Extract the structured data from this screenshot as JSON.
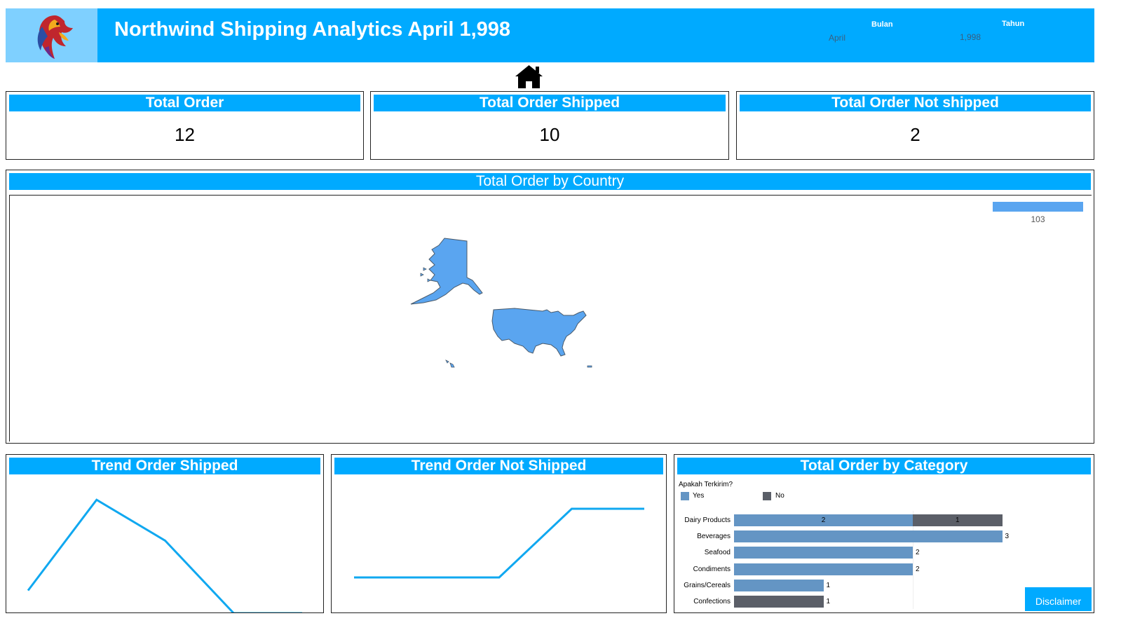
{
  "header": {
    "title": "Northwind Shipping Analytics April 1,998",
    "filters": [
      {
        "label": "Bulan",
        "value": "April"
      },
      {
        "label": "Tahun",
        "value": "1,998"
      }
    ],
    "logo_icon": "phoenix-logo",
    "home_icon": "home-icon"
  },
  "kpis": [
    {
      "title": "Total Order",
      "value": "12"
    },
    {
      "title": "Total Order Shipped",
      "value": "10"
    },
    {
      "title": "Total Order Not shipped",
      "value": "2"
    }
  ],
  "map": {
    "title": "Total Order by Country",
    "legend_value": "103",
    "fill_color": "#5aa5f0"
  },
  "trend_shipped": {
    "title": "Trend Order Shipped",
    "line_color": "#10a8f0"
  },
  "trend_not_shipped": {
    "title": "Trend Order Not Shipped",
    "line_color": "#10a8f0"
  },
  "category": {
    "title": "Total Order by Category",
    "legend_title": "Apakah Terkirim?",
    "legend": [
      {
        "name": "Yes",
        "color": "#6495c4"
      },
      {
        "name": "No",
        "color": "#5b5f68"
      }
    ]
  },
  "disclaimer_label": "Disclaimer",
  "chart_data": [
    {
      "type": "line",
      "x": [
        1,
        2,
        3,
        4,
        5
      ],
      "values": [
        1,
        5,
        3.2,
        0,
        0
      ],
      "ylim": [
        0,
        5.5
      ]
    },
    {
      "type": "line",
      "x": [
        1,
        2,
        3,
        4,
        5
      ],
      "values": [
        0,
        0,
        0,
        1,
        1
      ],
      "ylim": [
        -0.5,
        1.5
      ]
    },
    {
      "type": "bar",
      "orientation": "horizontal",
      "stacked": true,
      "categories": [
        "Dairy Products",
        "Beverages",
        "Seafood",
        "Condiments",
        "Grains/Cereals",
        "Confections"
      ],
      "series": [
        {
          "name": "Yes",
          "values": [
            2,
            3,
            2,
            2,
            1,
            0
          ]
        },
        {
          "name": "No",
          "values": [
            1,
            0,
            0,
            0,
            0,
            1
          ]
        }
      ],
      "xlim": [
        0,
        3
      ]
    }
  ]
}
